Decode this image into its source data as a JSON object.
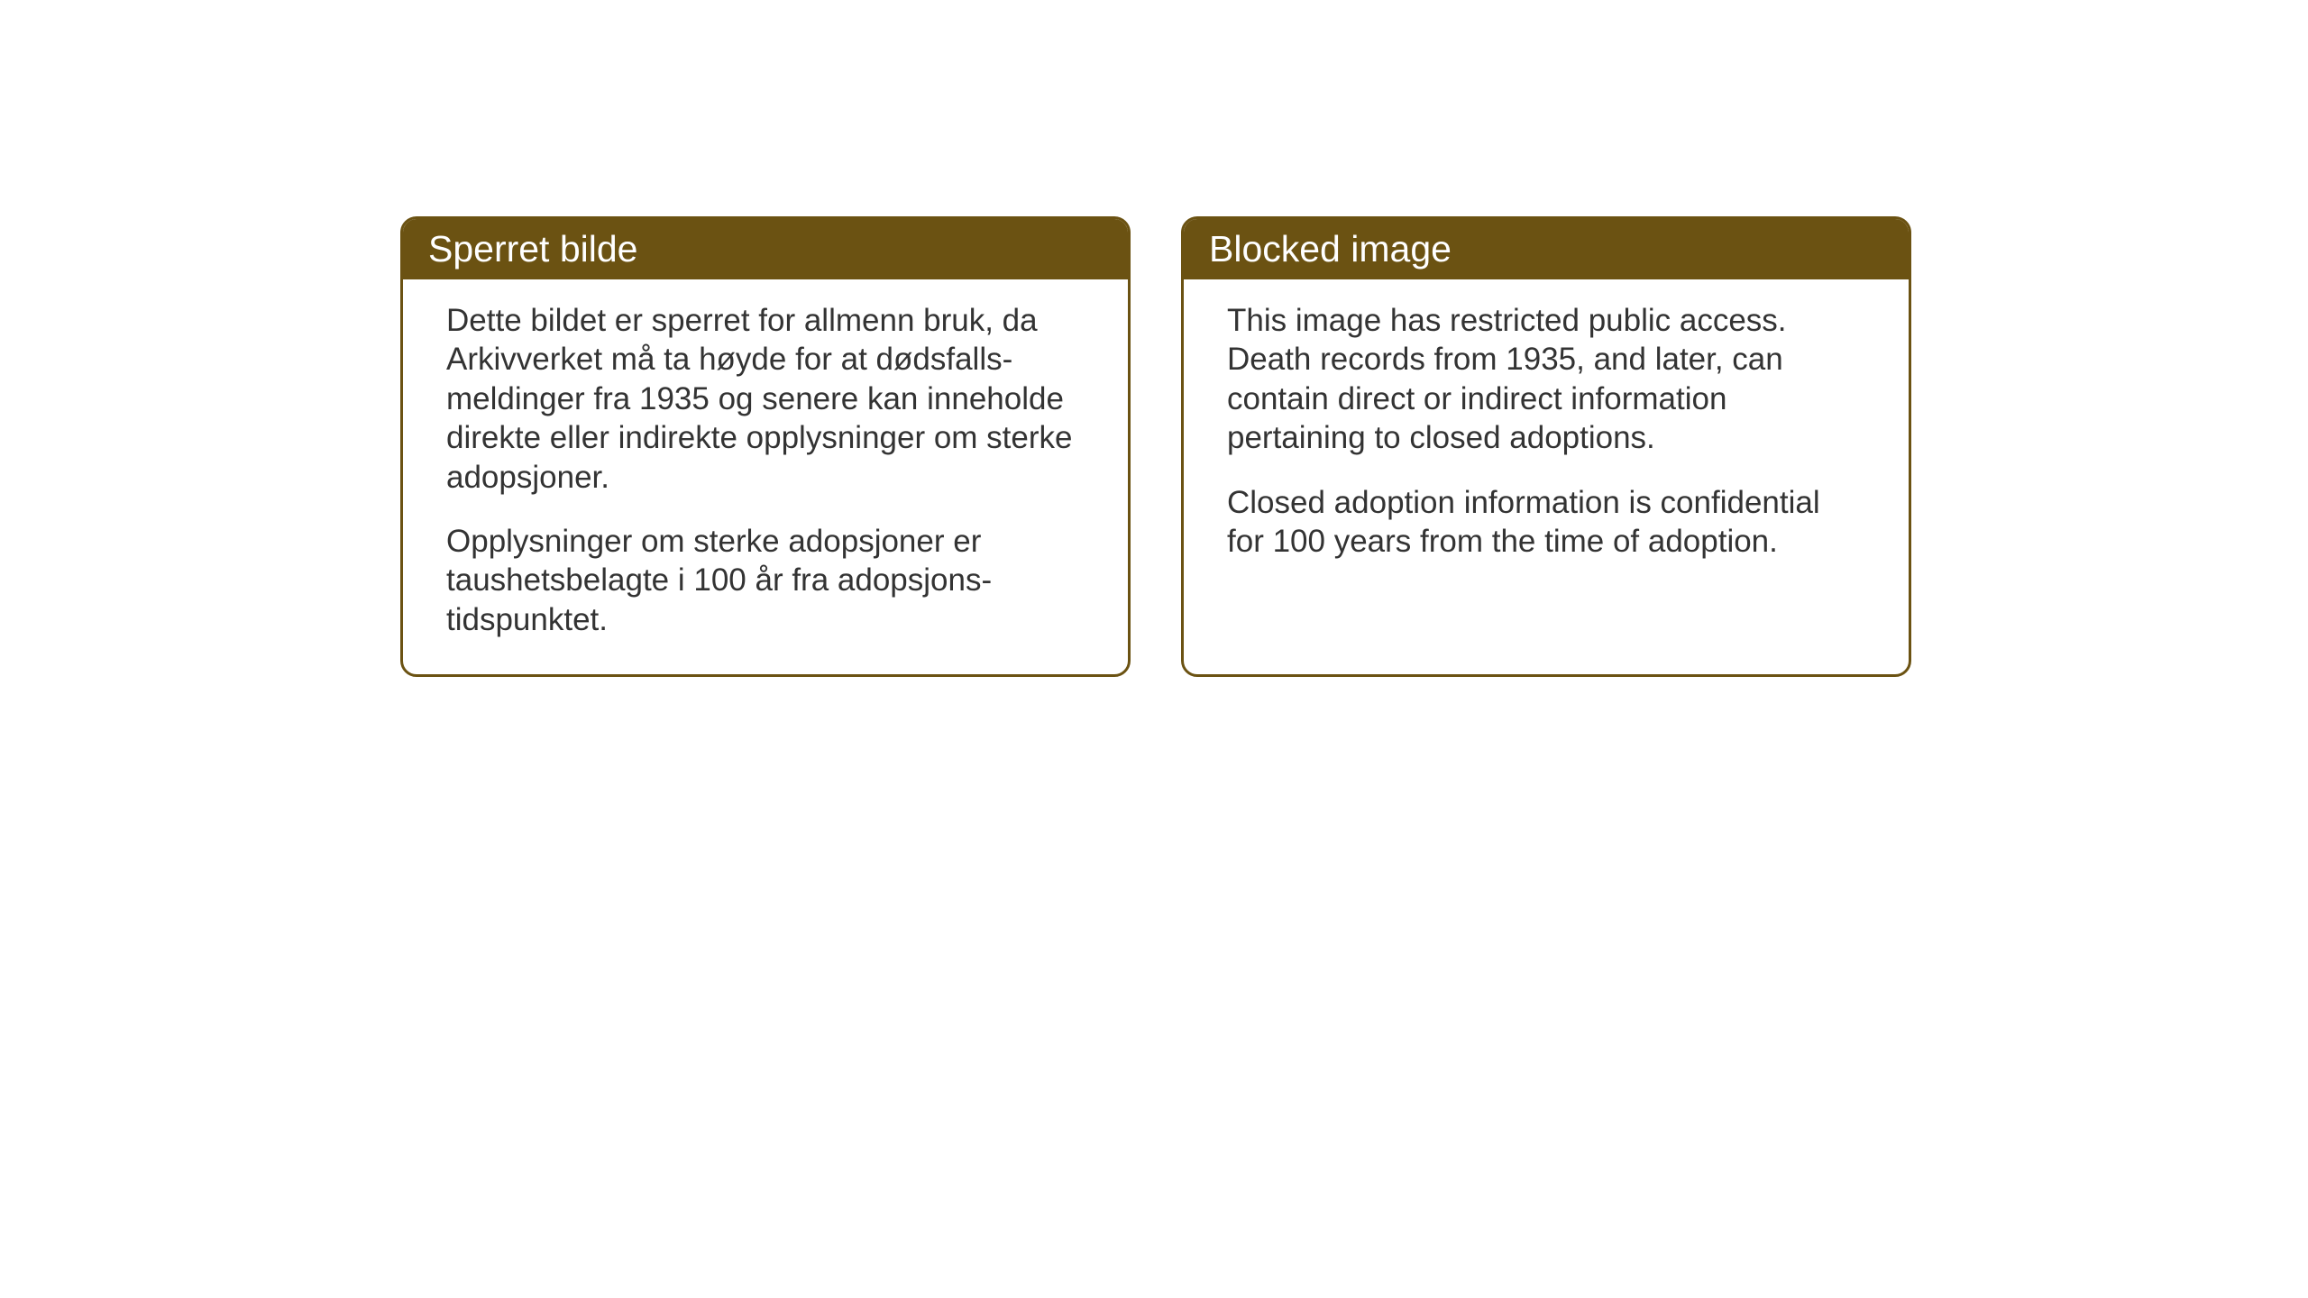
{
  "layout": {
    "background_color": "#ffffff",
    "card_border_color": "#6b5212",
    "card_header_bg": "#6b5212",
    "card_header_text_color": "#ffffff",
    "card_body_text_color": "#333333",
    "card_border_radius": 18,
    "card_border_width": 3,
    "header_fontsize": 41,
    "body_fontsize": 35
  },
  "cards": {
    "left": {
      "title": "Sperret bilde",
      "paragraph1": "Dette bildet er sperret for allmenn bruk, da Arkivverket må ta høyde for at dødsfalls-meldinger fra 1935 og senere kan inneholde direkte eller indirekte opplysninger om sterke adopsjoner.",
      "paragraph2": "Opplysninger om sterke adopsjoner er taushetsbelagte i 100 år fra adopsjons-tidspunktet."
    },
    "right": {
      "title": "Blocked image",
      "paragraph1": "This image has restricted public access. Death records from 1935, and later, can contain direct or indirect information pertaining to closed adoptions.",
      "paragraph2": "Closed adoption information is confidential for 100 years from the time of adoption."
    }
  }
}
